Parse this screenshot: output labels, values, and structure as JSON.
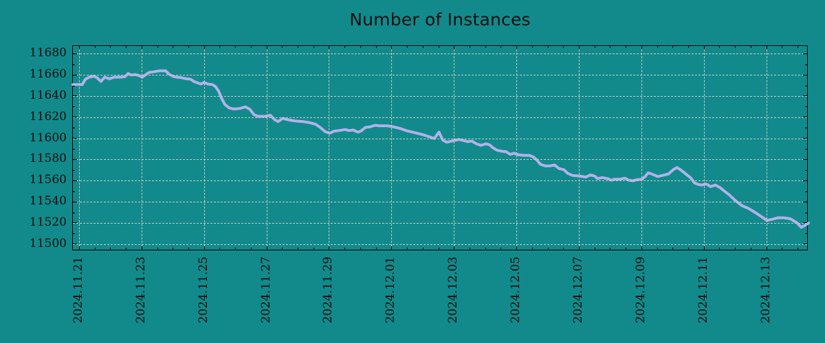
{
  "figure": {
    "title": "Number of Instances"
  },
  "colors": {
    "background": "#128a8b",
    "line": "#b2b1ea",
    "grid": "#c5cbc5",
    "axis": "#000000",
    "text": "#0b0b0b"
  },
  "chart_data": {
    "type": "line",
    "title": "Number of Instances",
    "legend": "none",
    "grid": "dashed, both axes",
    "x_axis": {
      "tick_labels": [
        "2024.11.21",
        "2024.11.23",
        "2024.11.25",
        "2024.11.27",
        "2024.11.29",
        "2024.12.01",
        "2024.12.03",
        "2024.12.05",
        "2024.12.07",
        "2024.12.09",
        "2024.12.11",
        "2024.12.13"
      ],
      "tick_days": [
        0,
        2,
        4,
        6,
        8,
        10,
        12,
        14,
        16,
        18,
        20,
        22
      ],
      "minor_step_days": 0.5,
      "range_days": [
        -0.22,
        23.33
      ],
      "label_rotation_deg": 90
    },
    "y_axis": {
      "ticks": [
        11500,
        11520,
        11540,
        11560,
        11580,
        11600,
        11620,
        11640,
        11660,
        11680
      ],
      "minor_step": 10,
      "lim": [
        11494,
        11688
      ]
    },
    "series": [
      {
        "name": "Number of Instances",
        "color": "#b2b1ea",
        "points": [
          [
            -0.22,
            11651.5
          ],
          [
            0.08,
            11651.5
          ],
          [
            0.18,
            11656.5
          ],
          [
            0.3,
            11658.5
          ],
          [
            0.45,
            11659.5
          ],
          [
            0.55,
            11658
          ],
          [
            0.68,
            11654.5
          ],
          [
            0.8,
            11658.5
          ],
          [
            0.95,
            11657
          ],
          [
            1.1,
            11658.5
          ],
          [
            1.3,
            11658.5
          ],
          [
            1.45,
            11659
          ],
          [
            1.55,
            11662
          ],
          [
            1.65,
            11660.5
          ],
          [
            1.78,
            11661
          ],
          [
            1.9,
            11660
          ],
          [
            2.0,
            11658.5
          ],
          [
            2.12,
            11661
          ],
          [
            2.22,
            11663
          ],
          [
            2.35,
            11663.5
          ],
          [
            2.55,
            11664.5
          ],
          [
            2.75,
            11664.5
          ],
          [
            2.85,
            11661.5
          ],
          [
            3.0,
            11659
          ],
          [
            3.12,
            11658.5
          ],
          [
            3.25,
            11658
          ],
          [
            3.4,
            11657
          ],
          [
            3.55,
            11656.5
          ],
          [
            3.65,
            11654.5
          ],
          [
            3.78,
            11653
          ],
          [
            3.88,
            11652
          ],
          [
            3.98,
            11653.5
          ],
          [
            4.1,
            11652
          ],
          [
            4.25,
            11651.5
          ],
          [
            4.35,
            11649.5
          ],
          [
            4.45,
            11645
          ],
          [
            4.55,
            11638
          ],
          [
            4.65,
            11632.5
          ],
          [
            4.78,
            11629.5
          ],
          [
            4.9,
            11628.5
          ],
          [
            5.02,
            11628.5
          ],
          [
            5.15,
            11629
          ],
          [
            5.3,
            11630.5
          ],
          [
            5.45,
            11628
          ],
          [
            5.58,
            11623
          ],
          [
            5.7,
            11621.5
          ],
          [
            5.95,
            11621.5
          ],
          [
            6.1,
            11622.5
          ],
          [
            6.25,
            11618
          ],
          [
            6.35,
            11616.5
          ],
          [
            6.5,
            11619.5
          ],
          [
            6.7,
            11618
          ],
          [
            6.9,
            11617
          ],
          [
            7.15,
            11616.5
          ],
          [
            7.35,
            11615.5
          ],
          [
            7.55,
            11614
          ],
          [
            7.7,
            11611
          ],
          [
            7.85,
            11607
          ],
          [
            8.0,
            11605.5
          ],
          [
            8.15,
            11607.5
          ],
          [
            8.3,
            11608
          ],
          [
            8.5,
            11609
          ],
          [
            8.62,
            11608
          ],
          [
            8.75,
            11608.5
          ],
          [
            8.9,
            11606.5
          ],
          [
            9.0,
            11607.5
          ],
          [
            9.15,
            11611
          ],
          [
            9.3,
            11611.5
          ],
          [
            9.45,
            11613
          ],
          [
            9.6,
            11612.5
          ],
          [
            9.85,
            11612.5
          ],
          [
            10.05,
            11611.5
          ],
          [
            10.25,
            11610
          ],
          [
            10.5,
            11607.5
          ],
          [
            10.65,
            11606.5
          ],
          [
            10.8,
            11605.5
          ],
          [
            11.0,
            11604
          ],
          [
            11.2,
            11602
          ],
          [
            11.35,
            11600.5
          ],
          [
            11.5,
            11606.5
          ],
          [
            11.62,
            11599
          ],
          [
            11.75,
            11597
          ],
          [
            11.9,
            11598
          ],
          [
            12.05,
            11599
          ],
          [
            12.15,
            11599.5
          ],
          [
            12.3,
            11598.5
          ],
          [
            12.42,
            11597.5
          ],
          [
            12.55,
            11598
          ],
          [
            12.7,
            11595.5
          ],
          [
            12.85,
            11594
          ],
          [
            13.0,
            11595.5
          ],
          [
            13.12,
            11594.5
          ],
          [
            13.22,
            11592
          ],
          [
            13.35,
            11589.5
          ],
          [
            13.5,
            11588.5
          ],
          [
            13.65,
            11588
          ],
          [
            13.78,
            11585.5
          ],
          [
            13.9,
            11586.5
          ],
          [
            14.05,
            11585
          ],
          [
            14.25,
            11584.5
          ],
          [
            14.4,
            11584.5
          ],
          [
            14.52,
            11583
          ],
          [
            14.62,
            11580.5
          ],
          [
            14.75,
            11576
          ],
          [
            14.9,
            11574.5
          ],
          [
            15.05,
            11574.5
          ],
          [
            15.2,
            11575.5
          ],
          [
            15.35,
            11572
          ],
          [
            15.5,
            11571
          ],
          [
            15.62,
            11567.5
          ],
          [
            15.78,
            11565.5
          ],
          [
            16.0,
            11565
          ],
          [
            16.2,
            11564
          ],
          [
            16.35,
            11566
          ],
          [
            16.48,
            11565
          ],
          [
            16.58,
            11562.5
          ],
          [
            16.72,
            11563.5
          ],
          [
            16.9,
            11562.5
          ],
          [
            17.02,
            11561
          ],
          [
            17.12,
            11562
          ],
          [
            17.3,
            11562
          ],
          [
            17.45,
            11563
          ],
          [
            17.58,
            11561
          ],
          [
            17.7,
            11560.5
          ],
          [
            17.85,
            11561.5
          ],
          [
            18.0,
            11562
          ],
          [
            18.1,
            11564.5
          ],
          [
            18.2,
            11568
          ],
          [
            18.35,
            11566.5
          ],
          [
            18.5,
            11564.5
          ],
          [
            18.65,
            11565.5
          ],
          [
            18.85,
            11567
          ],
          [
            19.0,
            11571
          ],
          [
            19.12,
            11573
          ],
          [
            19.25,
            11570.5
          ],
          [
            19.4,
            11567
          ],
          [
            19.55,
            11563.5
          ],
          [
            19.68,
            11558.5
          ],
          [
            19.8,
            11557
          ],
          [
            19.92,
            11556.5
          ],
          [
            20.05,
            11557.5
          ],
          [
            20.2,
            11555
          ],
          [
            20.35,
            11556.5
          ],
          [
            20.5,
            11554
          ],
          [
            20.65,
            11550.5
          ],
          [
            20.8,
            11547
          ],
          [
            21.0,
            11541.5
          ],
          [
            21.2,
            11537
          ],
          [
            21.4,
            11534.5
          ],
          [
            21.65,
            11530
          ],
          [
            21.85,
            11526
          ],
          [
            22.0,
            11523
          ],
          [
            22.15,
            11524
          ],
          [
            22.35,
            11525.5
          ],
          [
            22.55,
            11525.5
          ],
          [
            22.75,
            11524.5
          ],
          [
            22.95,
            11521
          ],
          [
            23.1,
            11516.5
          ],
          [
            23.2,
            11518
          ],
          [
            23.33,
            11520.5
          ]
        ]
      }
    ]
  }
}
